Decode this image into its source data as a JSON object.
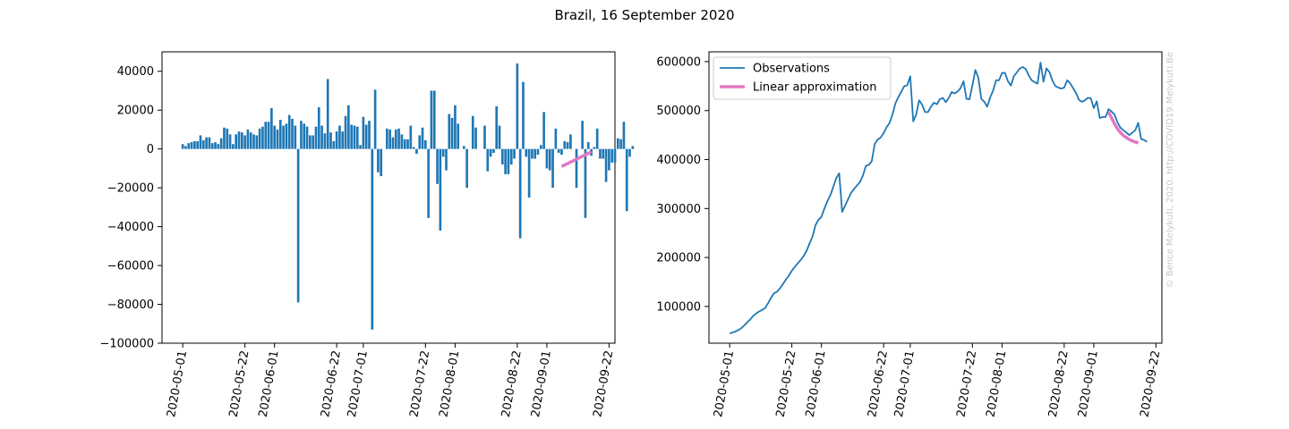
{
  "figure": {
    "title": "Brazil, 16 September 2020",
    "copyright": "© Bence Melykuti, 2020. http://COVID19.Melykuti.Be"
  },
  "colors": {
    "observations": "#1f77b4",
    "approximation": "#e377c2",
    "axis": "#000000",
    "copyright": "#c8c8c8"
  },
  "chart_data": [
    {
      "type": "bar",
      "x_start": "2020-05-01",
      "x_step_days": 1,
      "values": [
        2500,
        1500,
        3000,
        3500,
        4000,
        4000,
        7000,
        4500,
        6000,
        6000,
        3000,
        3500,
        2500,
        5500,
        11000,
        10500,
        7500,
        2500,
        7500,
        9000,
        8500,
        7000,
        10000,
        8500,
        7500,
        7000,
        10500,
        11500,
        14000,
        14000,
        21000,
        12000,
        10000,
        15000,
        12000,
        13000,
        17500,
        15500,
        12000,
        -79000,
        14500,
        13000,
        11500,
        7000,
        7000,
        11500,
        21500,
        12000,
        8000,
        36000,
        8500,
        4000,
        9000,
        12000,
        9000,
        17000,
        22500,
        12500,
        12000,
        11500,
        2000,
        16500,
        12500,
        14500,
        -93000,
        30500,
        -12000,
        -14000,
        0,
        10500,
        10000,
        6000,
        10000,
        10500,
        7500,
        5000,
        5000,
        12000,
        1000,
        -2500,
        7000,
        11000,
        4500,
        -35500,
        30000,
        30000,
        -18000,
        -42000,
        -4000,
        -11000,
        18000,
        16000,
        22500,
        13000,
        0,
        1500,
        -20000,
        0,
        17000,
        11000,
        0,
        0,
        12000,
        -11500,
        -4000,
        -2000,
        22000,
        12000,
        -8000,
        -13000,
        -13000,
        -8000,
        -5000,
        44000,
        -46000,
        34500,
        -4000,
        -25000,
        -5000,
        -5000,
        -3000,
        2000,
        19000,
        -10000,
        -11000,
        -20000,
        10500,
        -2000,
        -3000,
        4000,
        3500,
        7500,
        0,
        -20000,
        0,
        14500,
        -35500,
        3500,
        -3500,
        1000,
        10500,
        -5000,
        -5000,
        -17000,
        -11000,
        -7000,
        -7000,
        5500,
        5000,
        14000,
        -32000,
        -4000,
        1500
      ],
      "xlim": [
        "2020-04-24",
        "2020-09-24"
      ],
      "ylim": [
        -100000,
        50000
      ],
      "xticks": [
        "2020-05-01",
        "2020-05-22",
        "2020-06-01",
        "2020-06-22",
        "2020-07-01",
        "2020-07-22",
        "2020-08-01",
        "2020-08-22",
        "2020-09-01",
        "2020-09-22"
      ],
      "yticks": [
        40000,
        20000,
        0,
        -20000,
        -40000,
        -60000,
        -80000,
        -100000
      ],
      "ytick_labels": [
        "40000",
        "20000",
        "0",
        "−20000",
        "−40000",
        "−60000",
        "−80000",
        "−100000"
      ],
      "approximation": {
        "x": [
          "2020-09-06",
          "2020-09-16"
        ],
        "y": [
          -9000,
          -1500
        ]
      }
    },
    {
      "type": "line",
      "x_start": "2020-05-01",
      "x_step_days": 1,
      "values": [
        45000,
        47000,
        49000,
        52000,
        56000,
        62000,
        68000,
        74000,
        81000,
        86000,
        90000,
        93000,
        97000,
        107000,
        118000,
        127000,
        130000,
        137000,
        146000,
        155000,
        163000,
        173000,
        181000,
        188000,
        195000,
        203000,
        214000,
        229000,
        243000,
        266000,
        277000,
        283000,
        300000,
        315000,
        327000,
        344000,
        362000,
        372000,
        293000,
        306000,
        319000,
        332000,
        340000,
        347000,
        354000,
        367000,
        387000,
        389000,
        397000,
        432000,
        441000,
        445000,
        454000,
        466000,
        475000,
        492000,
        515000,
        528000,
        539000,
        550000,
        552000,
        570000,
        478000,
        492000,
        521000,
        512000,
        497000,
        497000,
        508000,
        516000,
        513000,
        523000,
        526000,
        517000,
        526000,
        538000,
        535000,
        539000,
        546000,
        560000,
        524000,
        523000,
        552000,
        583000,
        567000,
        524000,
        518000,
        508000,
        527000,
        541000,
        562000,
        562000,
        577000,
        577000,
        560000,
        551000,
        570000,
        578000,
        586000,
        589000,
        585000,
        572000,
        562000,
        558000,
        555000,
        598000,
        559000,
        586000,
        579000,
        562000,
        550000,
        547000,
        545000,
        547000,
        562000,
        556000,
        546000,
        536000,
        522000,
        518000,
        521000,
        526000,
        525000,
        505000,
        519000,
        485000,
        487000,
        487000,
        503000,
        498000,
        492000,
        476000,
        465000,
        460000,
        455000,
        450000,
        455000,
        460000,
        475000,
        442000,
        440000,
        436000
      ],
      "xlim": [
        "2020-04-24",
        "2020-09-24"
      ],
      "ylim": [
        25000,
        620000
      ],
      "xticks": [
        "2020-05-01",
        "2020-05-22",
        "2020-06-01",
        "2020-06-22",
        "2020-07-01",
        "2020-07-22",
        "2020-08-01",
        "2020-08-22",
        "2020-09-01",
        "2020-09-22"
      ],
      "yticks": [
        100000,
        200000,
        300000,
        400000,
        500000,
        600000
      ],
      "ytick_labels": [
        "100000",
        "200000",
        "300000",
        "400000",
        "500000",
        "600000"
      ],
      "series": [
        {
          "name": "Observations"
        },
        {
          "name": "Linear approximation"
        }
      ],
      "approximation": {
        "x_start": "2020-09-06",
        "values": [
          497000,
          485000,
          473000,
          463000,
          455000,
          449000,
          445000,
          441000,
          438000,
          436000,
          434000
        ]
      },
      "legend": "top-left"
    }
  ]
}
